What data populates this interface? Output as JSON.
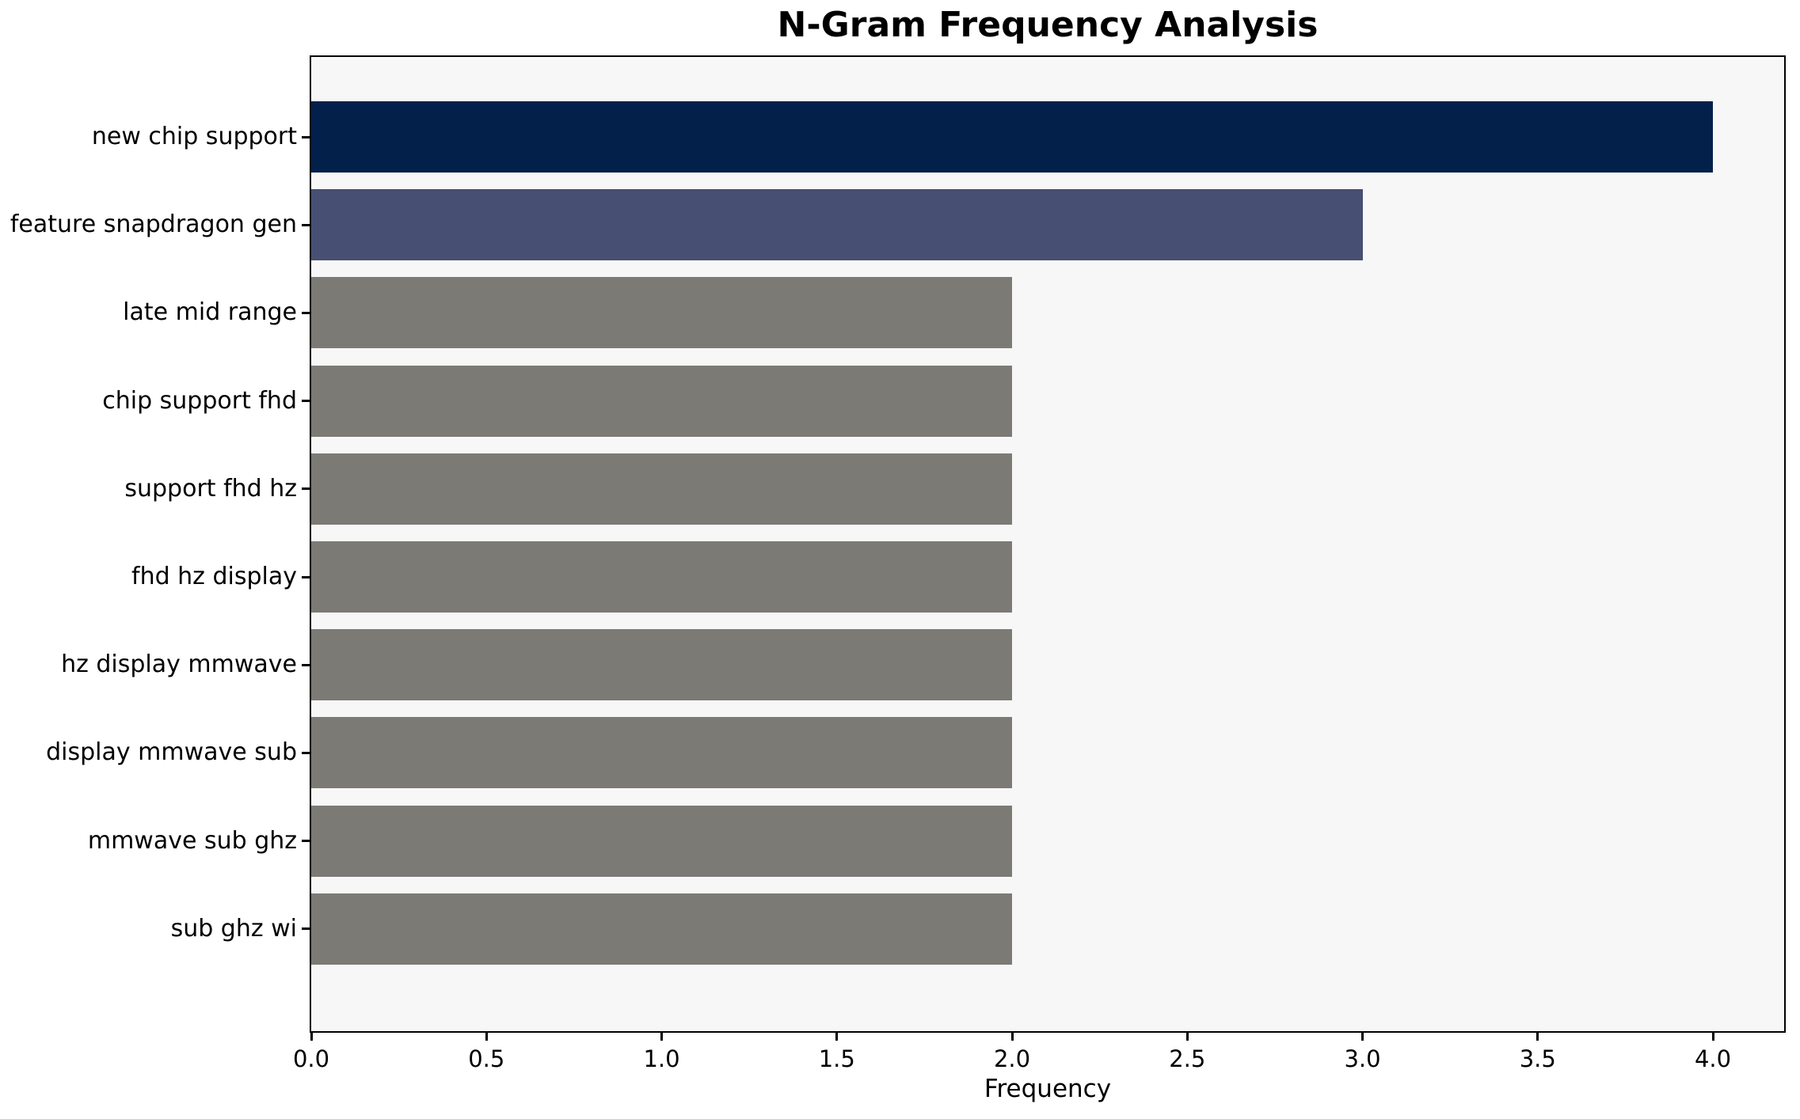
{
  "chart_data": {
    "type": "bar",
    "orientation": "horizontal",
    "title": "N-Gram Frequency Analysis",
    "xlabel": "Frequency",
    "ylabel": "",
    "categories": [
      "new chip support",
      "feature snapdragon gen",
      "late mid range",
      "chip support fhd",
      "support fhd hz",
      "fhd hz display",
      "hz display mmwave",
      "display mmwave sub",
      "mmwave sub ghz",
      "sub ghz wi"
    ],
    "values": [
      4,
      3,
      2,
      2,
      2,
      2,
      2,
      2,
      2,
      2
    ],
    "bar_colors": [
      "#022049",
      "#475072",
      "#7b7a75",
      "#7b7a75",
      "#7b7a75",
      "#7b7a75",
      "#7b7a75",
      "#7b7a75",
      "#7b7a75",
      "#7b7a75"
    ],
    "xlim": [
      0,
      4.2
    ],
    "xticks": [
      "0.0",
      "0.5",
      "1.0",
      "1.5",
      "2.0",
      "2.5",
      "3.0",
      "3.5",
      "4.0"
    ],
    "xtick_values": [
      0,
      0.5,
      1.0,
      1.5,
      2.0,
      2.5,
      3.0,
      3.5,
      4.0
    ],
    "grid": false,
    "legend": false,
    "plot_background": "#f8f7f7",
    "figure_background": "#ffffff",
    "spine_color": "#000000"
  }
}
